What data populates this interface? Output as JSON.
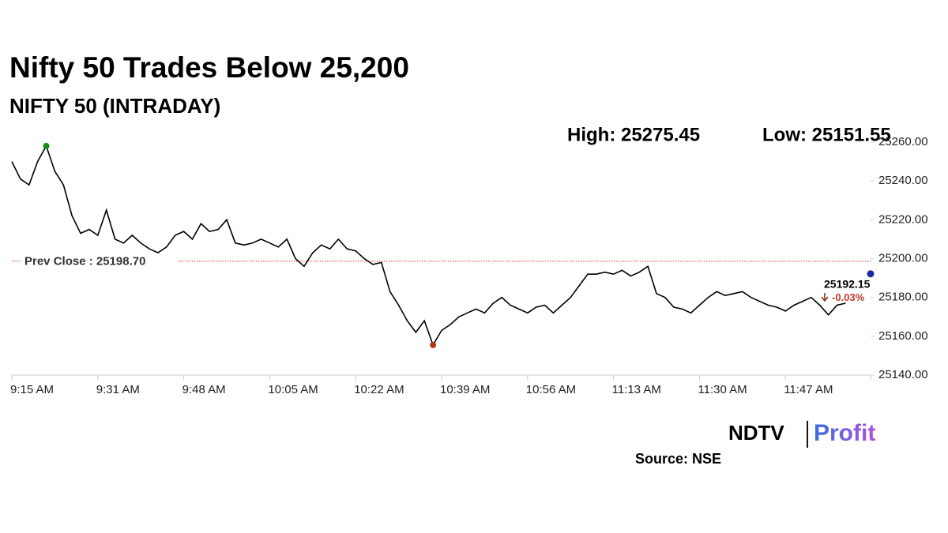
{
  "chart_data": {
    "type": "line",
    "title": "Nifty 50 Trades Below 25,200",
    "subtitle": "NIFTY 50 (INTRADAY)",
    "annotations": [
      "High: 25275.45",
      "Low: 25151.55"
    ],
    "prev_close": 25198.7,
    "prev_close_label": "Prev Close : 25198.70",
    "last_value": 25192.15,
    "change_label": "-0.03%",
    "source": "Source: NSE",
    "logo": {
      "left": "NDTV",
      "right": "Profit"
    },
    "color": "#000000",
    "categories": [
      "9:15 AM",
      null,
      null,
      null,
      null,
      null,
      null,
      null,
      null,
      null,
      "9:31 AM",
      null,
      null,
      null,
      null,
      null,
      null,
      null,
      null,
      null,
      "9:48 AM",
      null,
      null,
      null,
      null,
      null,
      null,
      null,
      null,
      null,
      "10:05 AM",
      null,
      null,
      null,
      null,
      null,
      null,
      null,
      null,
      null,
      "10:22 AM",
      null,
      null,
      null,
      null,
      null,
      null,
      null,
      null,
      null,
      "10:39 AM",
      null,
      null,
      null,
      null,
      null,
      null,
      null,
      null,
      null,
      "10:56 AM",
      null,
      null,
      null,
      null,
      null,
      null,
      null,
      null,
      null,
      "11:13 AM",
      null,
      null,
      null,
      null,
      null,
      null,
      null,
      null,
      null,
      "11:30 AM",
      null,
      null,
      null,
      null,
      null,
      null,
      null,
      null,
      null,
      "11:47 AM",
      null,
      null,
      null,
      null,
      null,
      null,
      null
    ],
    "values": [
      25250,
      25241,
      25238,
      25250,
      25258,
      25245,
      25238,
      25222,
      25213,
      25215,
      25212,
      25225,
      25210,
      25208,
      25212,
      25208,
      25205,
      25203,
      25206,
      25212,
      25214,
      25210,
      25218,
      25214,
      25215,
      25220,
      25208,
      25207,
      25208,
      25210,
      25208,
      25206,
      25210,
      25200,
      25196,
      25203,
      25207,
      25205,
      25210,
      25205,
      25204,
      25200,
      25197,
      25198,
      25183,
      25176,
      25168,
      25162,
      25168,
      25155.5,
      25163,
      25166,
      25170,
      25172,
      25174,
      25172,
      25177,
      25180,
      25176,
      25174,
      25172,
      25175,
      25176,
      25172,
      25176,
      25180,
      25186,
      25192,
      25192,
      25193,
      25192,
      25194,
      25191,
      25193,
      25196,
      25182,
      25180,
      25175,
      25174,
      25172,
      25176,
      25180,
      25183,
      25181,
      25182,
      25183,
      25180,
      25178,
      25176,
      25175,
      25173,
      25176,
      25178,
      25180,
      25176,
      25171,
      25176,
      25177
    ],
    "ylim": [
      25140,
      25260
    ],
    "yticks": [
      {
        "value": 25140,
        "label": "25140.00"
      },
      {
        "value": 25160,
        "label": "25160.00"
      },
      {
        "value": 25180,
        "label": "25180.00"
      },
      {
        "value": 25200,
        "label": "25200.00"
      },
      {
        "value": 25220,
        "label": "25220.00"
      },
      {
        "value": 25240,
        "label": "25240.00"
      },
      {
        "value": 25260,
        "label": "25260.00"
      }
    ]
  }
}
